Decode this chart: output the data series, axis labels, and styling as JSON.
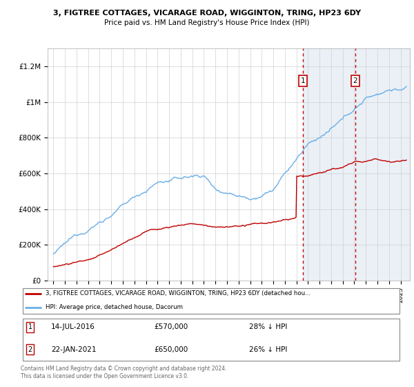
{
  "title1": "3, FIGTREE COTTAGES, VICARAGE ROAD, WIGGINTON, TRING, HP23 6DY",
  "title2": "Price paid vs. HM Land Registry's House Price Index (HPI)",
  "ylim": [
    0,
    1300000
  ],
  "yticks": [
    0,
    200000,
    400000,
    600000,
    800000,
    1000000,
    1200000
  ],
  "ytick_labels": [
    "£0",
    "£200K",
    "£400K",
    "£600K",
    "£800K",
    "£1M",
    "£1.2M"
  ],
  "hpi_color": "#6aaee8",
  "price_color": "#c00000",
  "transaction1_date": 2016.54,
  "transaction1_price": 570000,
  "transaction2_date": 2021.07,
  "transaction2_price": 650000,
  "legend1_text": "3, FIGTREE COTTAGES, VICARAGE ROAD, WIGGINTON, TRING, HP23 6DY (detached hou...",
  "legend2_text": "HPI: Average price, detached house, Dacorum",
  "fn1_date": "14-JUL-2016",
  "fn1_price": "£570,000",
  "fn1_note": "28% ↓ HPI",
  "fn2_date": "22-JAN-2021",
  "fn2_price": "£650,000",
  "fn2_note": "26% ↓ HPI",
  "copyright": "Contains HM Land Registry data © Crown copyright and database right 2024.\nThis data is licensed under the Open Government Licence v3.0.",
  "bg_fill_color": "#dce6f1",
  "xmin": 1994.5,
  "xmax": 2025.8
}
